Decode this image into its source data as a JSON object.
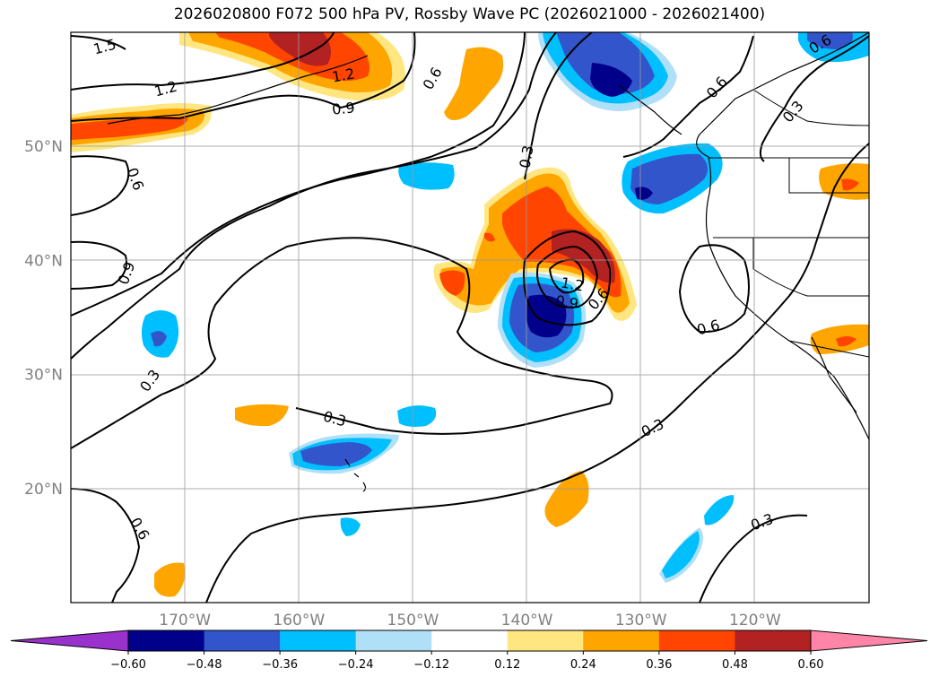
{
  "chart_data": {
    "type": "contour-map",
    "title": "2026020800 F072 500 hPa PV, Rossby Wave PC (2026021000 - 2026021400)",
    "map": {
      "lon_range": [
        -180,
        -110
      ],
      "lat_range": [
        10,
        60
      ],
      "grid": true
    },
    "lat_ticks": [
      "20°N",
      "30°N",
      "40°N",
      "50°N"
    ],
    "lon_ticks": [
      "170°W",
      "160°W",
      "150°W",
      "140°W",
      "130°W",
      "120°W"
    ],
    "colorbar": {
      "levels": [
        -0.6,
        -0.48,
        -0.36,
        -0.24,
        -0.12,
        0.12,
        0.24,
        0.36,
        0.48,
        0.6
      ],
      "labels": [
        "−0.60",
        "−0.48",
        "−0.36",
        "−0.24",
        "−0.12",
        "0.12",
        "0.24",
        "0.36",
        "0.48",
        "0.60"
      ],
      "colors": [
        "#9932cc",
        "#00008b",
        "#3355cc",
        "#00bfff",
        "#b0e0f8",
        "#ffffff",
        "#ffe680",
        "#ffa500",
        "#ff4500",
        "#b22222",
        "#ff85a8"
      ],
      "extend": "both"
    },
    "contour_labels": [
      "1.5",
      "1.2",
      "1.2",
      "0.9",
      "0.6",
      "0.6",
      "0.3",
      "0.3",
      "0.6",
      "0.9",
      "0.3",
      "0.3",
      "0.3",
      "0.6",
      "0.6",
      "1.2",
      "0.9",
      "0.6",
      "0.3",
      "0.6",
      "0.3"
    ]
  }
}
